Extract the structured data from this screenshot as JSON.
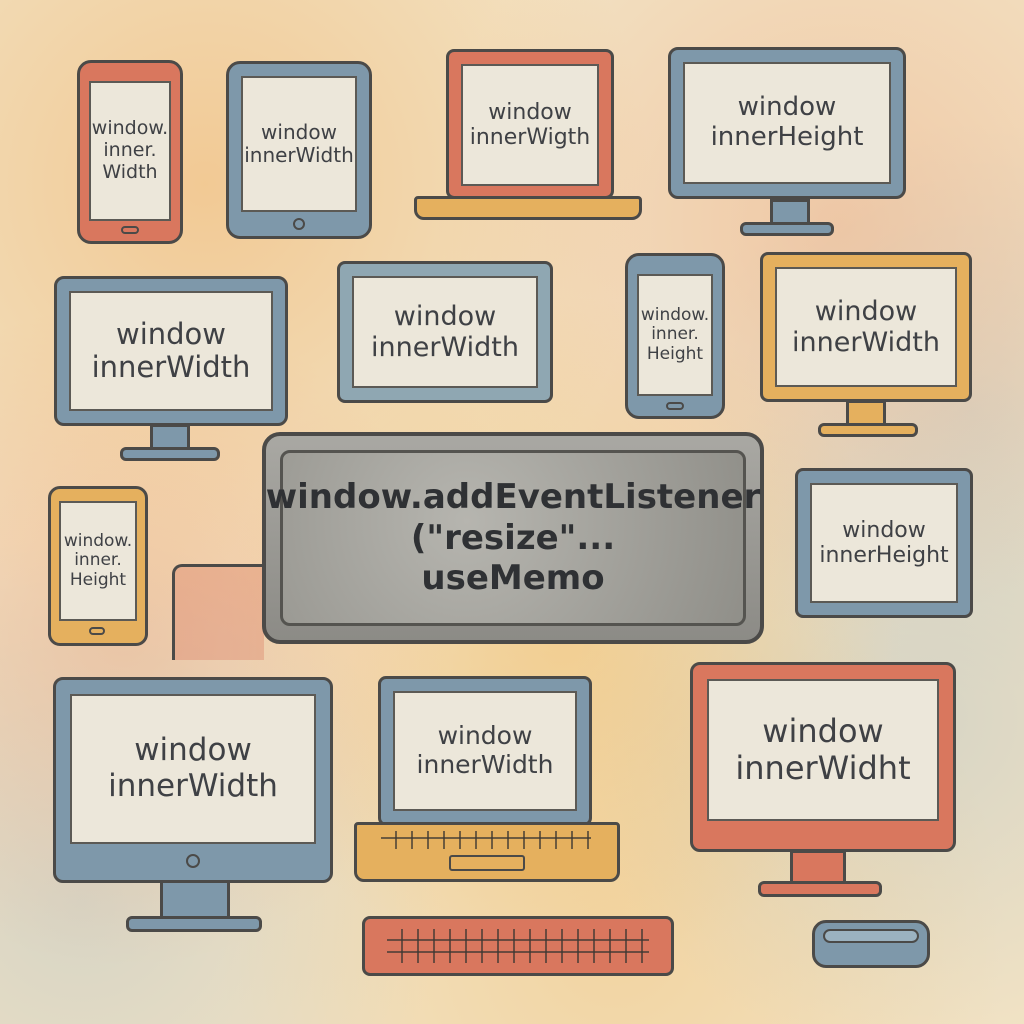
{
  "plaque": {
    "line1": "window.addEventListener",
    "line2": "(\"resize\"...",
    "line3": "useMemo"
  },
  "devices": [
    {
      "kind": "phone",
      "color": "red",
      "lines": [
        "window.",
        "inner.",
        "Width"
      ]
    },
    {
      "kind": "tablet",
      "color": "blue",
      "lines": [
        "window",
        "innerWidth"
      ]
    },
    {
      "kind": "laptop",
      "color": "red",
      "lines": [
        "window",
        "innerWigth"
      ]
    },
    {
      "kind": "monitor",
      "color": "blue",
      "lines": [
        "window",
        "innerHeight"
      ]
    },
    {
      "kind": "monitor",
      "color": "blue",
      "lines": [
        "window",
        "innerWidth"
      ]
    },
    {
      "kind": "tablet",
      "color": "bluegray",
      "lines": [
        "window",
        "innerWidth"
      ]
    },
    {
      "kind": "phone",
      "color": "blue",
      "lines": [
        "window.",
        "inner.",
        "Height"
      ]
    },
    {
      "kind": "monitor",
      "color": "orange",
      "lines": [
        "window",
        "innerWidth"
      ]
    },
    {
      "kind": "phone",
      "color": "orange",
      "lines": [
        "window.",
        "inner.",
        "Height"
      ]
    },
    {
      "kind": "tablet",
      "color": "blue",
      "lines": [
        "window",
        "innerHeight"
      ]
    },
    {
      "kind": "monitor",
      "color": "blue",
      "lines": [
        "window",
        "innerWidth"
      ]
    },
    {
      "kind": "laptop",
      "color": "orange",
      "lines": [
        "window",
        "innerWidth"
      ]
    },
    {
      "kind": "monitor",
      "color": "red",
      "lines": [
        "window",
        "innerWidht"
      ]
    },
    {
      "kind": "keyboard",
      "color": "red",
      "lines": []
    },
    {
      "kind": "mouse",
      "color": "blue",
      "lines": []
    }
  ],
  "colors": {
    "red": "#d9775e",
    "blue": "#7e98aa",
    "orange": "#e5b05e",
    "bluegray": "#8fa7b2",
    "paper": "#f3e3c4",
    "plaque": "#9a9994"
  }
}
